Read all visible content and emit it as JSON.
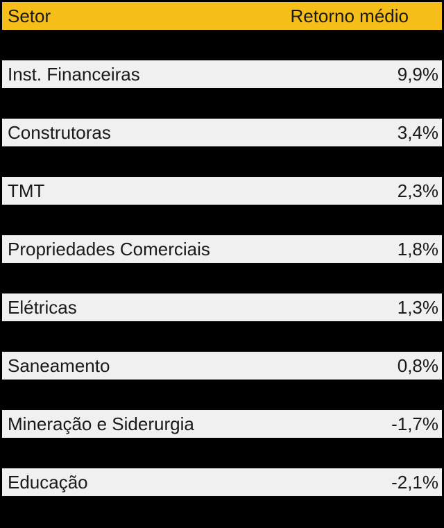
{
  "table": {
    "header": {
      "sector": "Setor",
      "value": "Retorno médio"
    },
    "rows": [
      {
        "sector": "Inst. Financeiras",
        "value": "9,9%"
      },
      {
        "sector": "Construtoras",
        "value": "3,4%"
      },
      {
        "sector": "TMT",
        "value": "2,3%"
      },
      {
        "sector": "Propriedades Comerciais",
        "value": "1,8%"
      },
      {
        "sector": "Elétricas",
        "value": "1,3%"
      },
      {
        "sector": "Saneamento",
        "value": "0,8%"
      },
      {
        "sector": "Mineração e Siderurgia",
        "value": "-1,7%"
      },
      {
        "sector": "Educação",
        "value": "-2,1%"
      }
    ]
  },
  "colors": {
    "header_bg": "#F6BE18",
    "row_bg": "#F0F0F0",
    "background": "#000000",
    "text": "#1A1A1A"
  },
  "chart_data": {
    "type": "table",
    "columns": [
      "Setor",
      "Retorno médio"
    ],
    "categories": [
      "Inst. Financeiras",
      "Construtoras",
      "TMT",
      "Propriedades Comerciais",
      "Elétricas",
      "Saneamento",
      "Mineração e Siderurgia",
      "Educação"
    ],
    "values": [
      9.9,
      3.4,
      2.3,
      1.8,
      1.3,
      0.8,
      -1.7,
      -2.1
    ],
    "value_unit": "%",
    "value_display": [
      "9,9%",
      "3,4%",
      "2,3%",
      "1,8%",
      "1,3%",
      "0,8%",
      "-1,7%",
      "-2,1%"
    ],
    "sorted": "descending by value"
  }
}
